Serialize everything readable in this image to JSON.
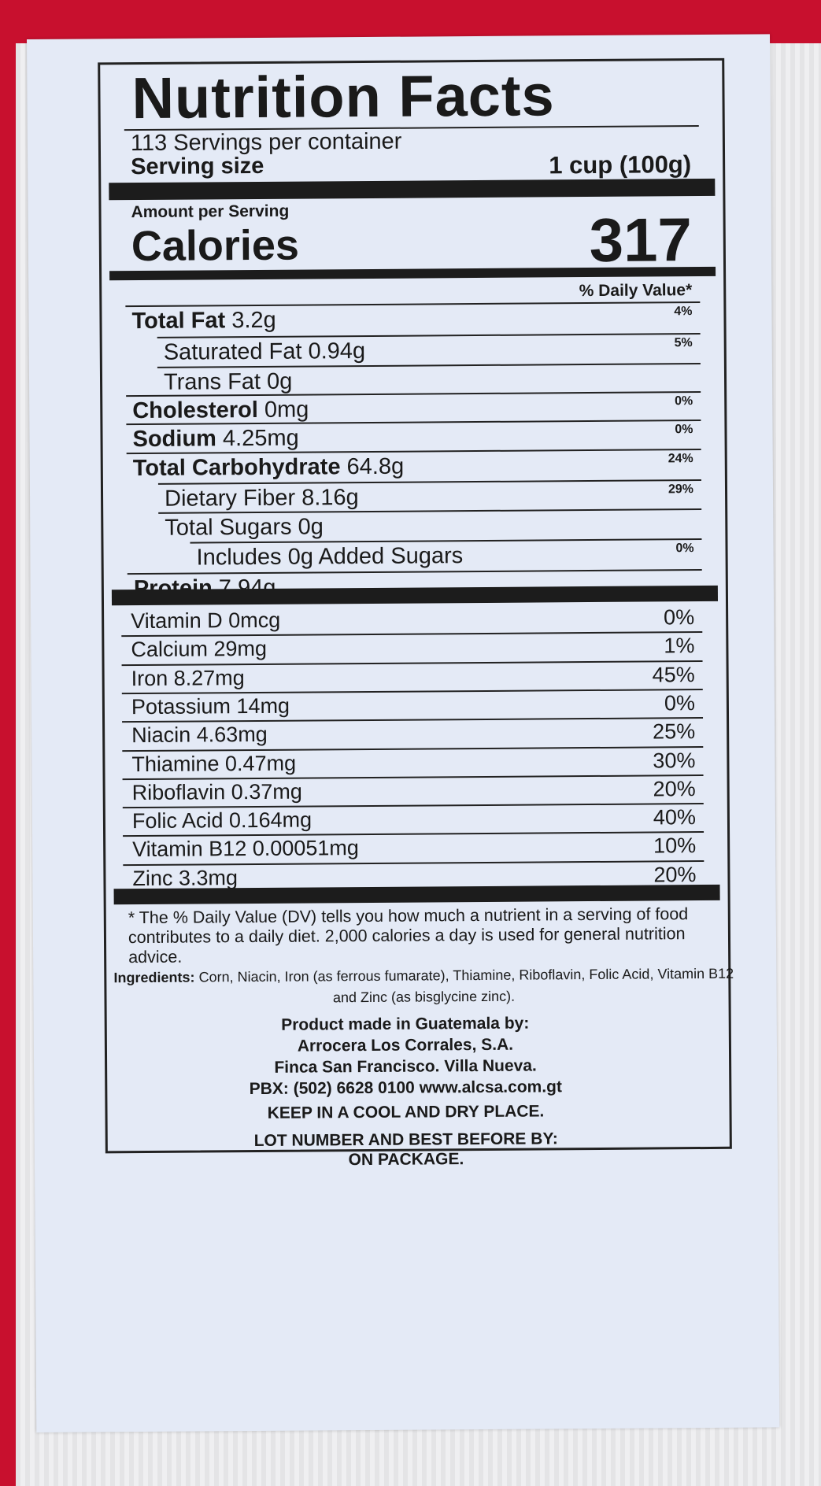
{
  "nutrition_facts": {
    "title": "Nutrition Facts",
    "servings_per_container": "113 Servings per container",
    "serving_size_label": "Serving size",
    "serving_size_value": "1 cup (100g)",
    "amount_per_serving": "Amount per Serving",
    "calories_label": "Calories",
    "calories_value": "317",
    "daily_value_header": "% Daily Value*",
    "nutrients": [
      {
        "name": "Total Fat",
        "amount": "3.2g",
        "dv": "4%"
      },
      {
        "name": "Saturated Fat",
        "amount": "0.94g",
        "dv": "5%"
      },
      {
        "name": "Trans Fat",
        "amount": "0g",
        "dv": ""
      },
      {
        "name": "Cholesterol",
        "amount": "0mg",
        "dv": "0%"
      },
      {
        "name": "Sodium",
        "amount": "4.25mg",
        "dv": "0%"
      },
      {
        "name": "Total Carbohydrate",
        "amount": "64.8g",
        "dv": "24%"
      },
      {
        "name": "Dietary Fiber",
        "amount": "8.16g",
        "dv": "29%"
      },
      {
        "name": "Total Sugars",
        "amount": "0g",
        "dv": ""
      },
      {
        "name": "Includes 0g Added Sugars",
        "amount": "",
        "dv": "0%"
      },
      {
        "name": "Protein",
        "amount": "7.94g",
        "dv": ""
      }
    ],
    "vitamins": [
      {
        "name": "Vitamin D 0mcg",
        "dv": "0%"
      },
      {
        "name": "Calcium 29mg",
        "dv": "1%"
      },
      {
        "name": "Iron 8.27mg",
        "dv": "45%"
      },
      {
        "name": "Potassium 14mg",
        "dv": "0%"
      },
      {
        "name": "Niacin 4.63mg",
        "dv": "25%"
      },
      {
        "name": "Thiamine 0.47mg",
        "dv": "30%"
      },
      {
        "name": "Riboflavin 0.37mg",
        "dv": "20%"
      },
      {
        "name": "Folic Acid 0.164mg",
        "dv": "40%"
      },
      {
        "name": "Vitamin B12 0.00051mg",
        "dv": "10%"
      },
      {
        "name": "Zinc 3.3mg",
        "dv": "20%"
      }
    ],
    "footnote": "* The % Daily Value (DV) tells you how much a nutrient in a serving of food contributes to a daily diet. 2,000 calories a day is used for general nutrition advice."
  },
  "ingredients": {
    "label": "Ingredients:",
    "text": "Corn, Niacin, Iron (as ferrous fumarate), Thiamine, Riboflavin, Folic Acid, Vitamin B12 and Zinc (as bisglycine zinc)."
  },
  "manufacturer": {
    "made_in": "Product made in Guatemala by:",
    "company": "Arrocera Los Corrales, S.A.",
    "address": "Finca San Francisco. Villa Nueva.",
    "contact": "PBX: (502) 6628 0100 www.alcsa.com.gt",
    "storage": "KEEP IN A COOL AND DRY PLACE.",
    "lot_line1": "LOT NUMBER AND BEST BEFORE BY:",
    "lot_line2": "ON PACKAGE."
  },
  "colors": {
    "bag_red": "#c8102e",
    "label_bg": "#e4eaf6",
    "ink": "#1a1a1a"
  }
}
